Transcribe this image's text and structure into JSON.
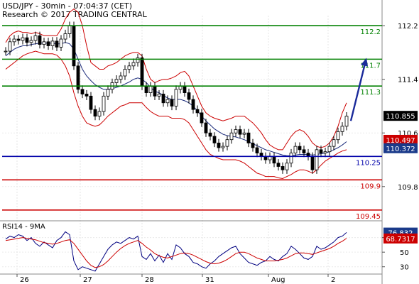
{
  "header": {
    "line1": "USD/JPY - 30min - 07:04:37 (CET)",
    "line2": "Research © 2017 TRADING CENTRAL"
  },
  "chart_data": [
    {
      "type": "candlestick",
      "panel": "price",
      "ylim": [
        109.3,
        112.35
      ],
      "y_ticks": [
        "112.2",
        "111.4",
        "110.6",
        "109.8"
      ],
      "x_ticks": [
        "26",
        "27",
        "28",
        "31",
        "Aug",
        "2"
      ],
      "grid": true,
      "levels": [
        {
          "label": "112.2",
          "value": 112.2,
          "color": "#008000"
        },
        {
          "label": "111.7",
          "value": 111.7,
          "color": "#008000"
        },
        {
          "label": "111.3",
          "value": 111.3,
          "color": "#008000"
        },
        {
          "label": "110.25",
          "value": 110.25,
          "color": "#0000aa"
        },
        {
          "label": "109.9",
          "value": 109.9,
          "color": "#cc0000"
        },
        {
          "label": "109.45",
          "value": 109.45,
          "color": "#cc0000"
        }
      ],
      "price_tags": [
        {
          "label": "110.855",
          "value": 110.855,
          "bg": "#000000",
          "fg": "#ffffff"
        },
        {
          "label": "110.497",
          "value": 110.497,
          "bg": "#cc0000",
          "fg": "#ffffff"
        },
        {
          "label": "110.372",
          "value": 110.372,
          "bg": "#1a3a8a",
          "fg": "#ffffff"
        }
      ],
      "series_close": [
        111.82,
        111.96,
        112.0,
        111.98,
        112.02,
        111.95,
        111.98,
        112.05,
        111.92,
        111.96,
        111.9,
        111.97,
        111.88,
        112.0,
        112.08,
        112.2,
        111.6,
        111.25,
        111.18,
        111.15,
        110.95,
        110.85,
        110.92,
        111.15,
        111.25,
        111.35,
        111.4,
        111.45,
        111.55,
        111.6,
        111.65,
        111.72,
        111.3,
        111.2,
        111.3,
        111.15,
        111.18,
        111.05,
        111.1,
        111.0,
        111.25,
        111.3,
        111.2,
        111.1,
        110.95,
        110.9,
        110.75,
        110.6,
        110.55,
        110.45,
        110.38,
        110.4,
        110.5,
        110.6,
        110.65,
        110.58,
        110.6,
        110.45,
        110.38,
        110.3,
        110.25,
        110.2,
        110.25,
        110.15,
        110.1,
        110.05,
        110.15,
        110.3,
        110.4,
        110.35,
        110.3,
        110.25,
        110.05,
        110.35,
        110.3,
        110.32,
        110.4,
        110.5,
        110.62,
        110.7,
        110.85
      ],
      "bollinger_upper": [
        111.95,
        112.05,
        112.1,
        112.12,
        112.1,
        112.1,
        112.08,
        112.1,
        112.08,
        112.05,
        112.05,
        112.05,
        112.05,
        112.15,
        112.3,
        112.4,
        112.45,
        112.4,
        112.2,
        111.9,
        111.65,
        111.6,
        111.55,
        111.55,
        111.6,
        111.62,
        111.65,
        111.7,
        111.75,
        111.78,
        111.8,
        111.8,
        111.75,
        111.55,
        111.4,
        111.35,
        111.38,
        111.4,
        111.4,
        111.42,
        111.45,
        111.5,
        111.52,
        111.45,
        111.3,
        111.15,
        111.0,
        110.9,
        110.85,
        110.82,
        110.8,
        110.78,
        110.8,
        110.82,
        110.85,
        110.85,
        110.85,
        110.8,
        110.75,
        110.68,
        110.6,
        110.5,
        110.42,
        110.38,
        110.35,
        110.35,
        110.45,
        110.55,
        110.62,
        110.65,
        110.62,
        110.55,
        110.45,
        110.4,
        110.38,
        110.4,
        110.45,
        110.55,
        110.7,
        110.9,
        111.05
      ],
      "bollinger_lower": [
        111.55,
        111.6,
        111.65,
        111.7,
        111.75,
        111.78,
        111.8,
        111.82,
        111.8,
        111.78,
        111.78,
        111.78,
        111.76,
        111.7,
        111.6,
        111.45,
        111.2,
        111.0,
        110.85,
        110.75,
        110.72,
        110.7,
        110.72,
        110.78,
        110.85,
        110.9,
        110.95,
        111.0,
        111.02,
        111.05,
        111.05,
        111.05,
        111.05,
        110.98,
        110.92,
        110.88,
        110.85,
        110.85,
        110.85,
        110.82,
        110.82,
        110.82,
        110.8,
        110.75,
        110.65,
        110.55,
        110.45,
        110.35,
        110.28,
        110.25,
        110.22,
        110.2,
        110.2,
        110.2,
        110.2,
        110.18,
        110.15,
        110.1,
        110.05,
        110.0,
        109.98,
        109.95,
        109.95,
        109.95,
        109.93,
        109.92,
        109.95,
        109.98,
        110.02,
        110.05,
        110.05,
        110.03,
        110.0,
        110.05,
        110.12,
        110.18,
        110.22,
        110.26,
        110.3,
        110.33,
        110.35
      ],
      "moving_average": [
        111.75,
        111.8,
        111.85,
        111.88,
        111.9,
        111.9,
        111.92,
        111.93,
        111.94,
        111.94,
        111.94,
        111.94,
        111.93,
        111.93,
        111.95,
        111.93,
        111.85,
        111.7,
        111.55,
        111.45,
        111.38,
        111.32,
        111.28,
        111.25,
        111.25,
        111.26,
        111.28,
        111.3,
        111.33,
        111.36,
        111.4,
        111.42,
        111.4,
        111.35,
        111.28,
        111.22,
        111.2,
        111.16,
        111.12,
        111.1,
        111.1,
        111.1,
        111.08,
        111.05,
        111.0,
        110.93,
        110.85,
        110.78,
        110.72,
        110.66,
        110.62,
        110.58,
        110.56,
        110.55,
        110.54,
        110.52,
        110.5,
        110.47,
        110.44,
        110.41,
        110.38,
        110.35,
        110.33,
        110.31,
        110.29,
        110.27,
        110.26,
        110.26,
        110.27,
        110.28,
        110.28,
        110.28,
        110.27,
        110.28,
        110.29,
        110.3,
        110.32,
        110.35,
        110.38,
        110.42,
        110.47
      ],
      "arrow": {
        "from": 110.78,
        "to": 111.72
      }
    },
    {
      "type": "line",
      "panel": "rsi",
      "title": "RSI14 - 9MA",
      "ylim": [
        20,
        92
      ],
      "y_ticks": [
        "70",
        "50",
        "30"
      ],
      "x_ticks": [
        "26",
        "27",
        "28",
        "31",
        "Aug",
        "2"
      ],
      "grid": true,
      "tags": [
        {
          "label": "76.832",
          "value": 76.832,
          "bg": "#1a3a8a",
          "fg": "#ffffff"
        },
        {
          "label": "68.7317",
          "value": 68.7317,
          "bg": "#cc0000",
          "fg": "#ffffff"
        }
      ],
      "series": [
        {
          "color": "#000080",
          "values": [
            68,
            72,
            70,
            74,
            72,
            66,
            70,
            62,
            58,
            64,
            60,
            56,
            66,
            70,
            78,
            74,
            38,
            26,
            30,
            28,
            26,
            24,
            34,
            44,
            54,
            60,
            64,
            62,
            66,
            70,
            68,
            72,
            44,
            40,
            48,
            38,
            46,
            36,
            48,
            40,
            60,
            56,
            48,
            44,
            36,
            34,
            30,
            28,
            34,
            38,
            44,
            48,
            52,
            56,
            58,
            48,
            42,
            36,
            34,
            32,
            36,
            38,
            44,
            40,
            38,
            44,
            48,
            58,
            54,
            48,
            42,
            40,
            44,
            58,
            54,
            56,
            60,
            64,
            70,
            72,
            77
          ]
        },
        {
          "color": "#cc0000",
          "values": [
            66,
            67,
            68,
            69,
            70,
            69,
            68,
            67,
            65,
            63,
            62,
            61,
            62,
            64,
            66,
            67,
            62,
            54,
            46,
            38,
            32,
            29,
            30,
            33,
            38,
            44,
            50,
            55,
            59,
            62,
            64,
            66,
            62,
            57,
            53,
            48,
            45,
            43,
            42,
            44,
            46,
            48,
            49,
            48,
            46,
            43,
            40,
            37,
            35,
            34,
            35,
            37,
            40,
            44,
            48,
            50,
            50,
            48,
            45,
            42,
            40,
            38,
            38,
            38,
            39,
            40,
            42,
            45,
            48,
            49,
            49,
            48,
            47,
            49,
            51,
            53,
            55,
            58,
            62,
            65,
            69
          ]
        }
      ]
    }
  ]
}
